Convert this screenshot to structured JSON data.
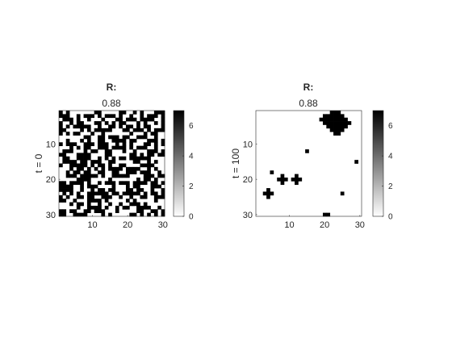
{
  "chart_data": [
    {
      "type": "heatmap",
      "title": "R:",
      "subtitle": "0.88",
      "ylabel": "t = 0",
      "xlabel": "",
      "grid_size": 30,
      "xlim": [
        0.5,
        30.5
      ],
      "ylim": [
        0.5,
        30.5
      ],
      "y_direction": "reversed",
      "x_ticks": [
        "10",
        "20",
        "30"
      ],
      "y_ticks": [
        "10",
        "20",
        "30"
      ],
      "colormap": "gray-reversed",
      "colorbar": {
        "ticks": [
          "0",
          "2",
          "4",
          "6"
        ],
        "range": [
          0,
          7
        ]
      },
      "values": [
        "101000000011000001100101000111",
        "111001011101011101001001011101",
        "011101001000100011011101111001",
        "100101100011010101100010100101",
        "101011111001001101011010110001",
        "110000101011111000110111010111",
        "101011000100100000001000101100",
        "000000011001101110110011100100",
        "001000101001100111101100011101",
        "101110011101110010101000110101",
        "000101011001110111101011100100",
        "011100010110011000100100011101",
        "110001111000011000001101011011",
        "011001111001010101101111110000",
        "011110110111001100000110010100",
        "100111110101101001100001111000",
        "000101101010101111011110010100",
        "001011011001100110011101110010",
        "001110111110100111110000111011",
        "000001111000001000000010110100",
        "110111101001011101110111101101",
        "111100101110000100010110001110",
        "111100100101101100011011001001",
        "010101001111110110111110101101",
        "101001101100111001001001100111",
        "110010001111010000010100000100",
        "000101101001001001001110100000",
        "000001001111010010110011110010",
        "110110011011100010000011001101",
        "110011110000101000001101010101"
      ]
    },
    {
      "type": "heatmap",
      "title": "R:",
      "subtitle": "0.88",
      "ylabel": "t = 100",
      "xlabel": "",
      "grid_size": 30,
      "xlim": [
        0.5,
        30.5
      ],
      "ylim": [
        0.5,
        30.5
      ],
      "y_direction": "reversed",
      "x_ticks": [
        "10",
        "20",
        "30"
      ],
      "y_ticks": [
        "10",
        "20",
        "30"
      ],
      "colormap": "gray-reversed",
      "colorbar": {
        "ticks": [
          "0",
          "2",
          "4",
          "6"
        ],
        "range": [
          0,
          7
        ]
      },
      "values": [
        "000000000000000000000111000000",
        "000000000000000000011111100000",
        "000000000000000000111111110000",
        "000000000000000000011111111000",
        "000000000000000000001111110000",
        "000000000000000000000111100000",
        "000000000000000000000011000000",
        "000000000000000000000000000000",
        "000000000000000000000000000000",
        "000000000000000000000000000000",
        "000000000000000000000000000000",
        "000000000000001000000000000000",
        "000000000000000000000000000000",
        "000000000000000000000000000000",
        "000000000000000000000000000010",
        "000000000000000000000000000000",
        "000000000000000000000000000000",
        "000010000000000000000000000000",
        "000000010001000000000000000000",
        "000000111011100000000000000000",
        "000000010001000000000000000000",
        "000000000000000000000000000000",
        "000100000000000000000000000000",
        "001110000000000000000000100000",
        "000100000000000000000000000000",
        "000000000000000000000000000000",
        "000000000000000000000000000000",
        "000000000000000000000000000000",
        "000000000000000000000000000000",
        "000000000000000000011000000000"
      ]
    }
  ]
}
